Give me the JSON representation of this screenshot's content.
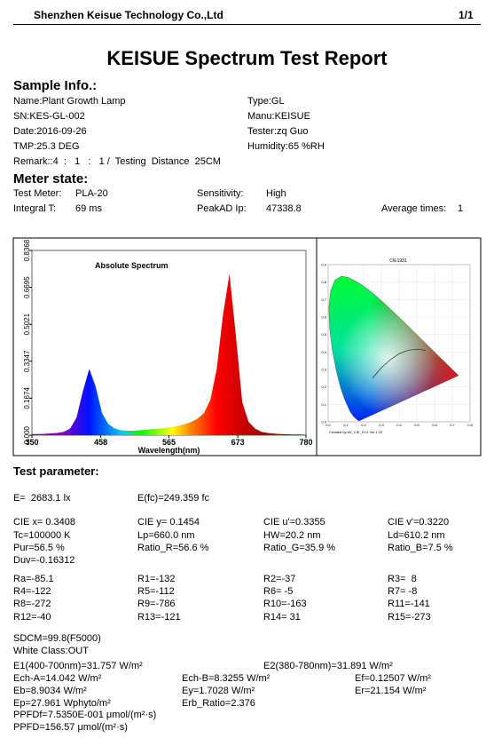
{
  "header": {
    "company": "Shenzhen Keisue Technology Co.,Ltd",
    "page": "1/1"
  },
  "title": "KEISUE Spectrum Test Report",
  "sample_info": {
    "heading": "Sample Info.:",
    "rows": [
      [
        "Name:Plant Growth Lamp",
        "Type:GL"
      ],
      [
        "SN:KES-GL-002",
        "Manu:KEISUE"
      ],
      [
        "Date:2016-09-26",
        "Tester:zq Guo"
      ],
      [
        "TMP:25.3 DEG",
        "Humidity:65 %RH"
      ]
    ],
    "remark": "Remark::4  :   1   :   1 /  Testing  Distance  25CM"
  },
  "meter_state": {
    "heading": "Meter state:",
    "rows": [
      [
        "Test Meter:",
        "PLA-20",
        "Sensitivity:",
        "High"
      ],
      [
        "Integral T:",
        "69 ms",
        "PeakAD Ip:",
        "47338.8",
        "Average times:",
        "1"
      ]
    ]
  },
  "chart_data": {
    "type": "line",
    "title": "Absolute Spectrum",
    "xlabel": "Wavelength(nm)",
    "x": [
      350,
      360,
      370,
      380,
      390,
      400,
      410,
      420,
      430,
      440,
      450,
      460,
      470,
      480,
      490,
      500,
      510,
      520,
      530,
      540,
      550,
      560,
      570,
      580,
      590,
      600,
      610,
      620,
      630,
      640,
      650,
      660,
      670,
      680,
      690,
      700,
      710,
      720,
      730,
      740,
      750,
      760,
      770,
      780
    ],
    "values": [
      0.005,
      0.005,
      0.006,
      0.008,
      0.01,
      0.015,
      0.03,
      0.08,
      0.2,
      0.3,
      0.22,
      0.1,
      0.05,
      0.03,
      0.022,
      0.02,
      0.02,
      0.022,
      0.025,
      0.028,
      0.03,
      0.033,
      0.037,
      0.042,
      0.05,
      0.06,
      0.075,
      0.1,
      0.16,
      0.3,
      0.55,
      0.73,
      0.45,
      0.15,
      0.06,
      0.03,
      0.015,
      0.01,
      0.007,
      0.005,
      0.004,
      0.003,
      0.003,
      0.002
    ],
    "xlim": [
      350,
      780
    ],
    "xticks": [
      350,
      458,
      565,
      673,
      780
    ],
    "ylim": [
      0,
      0.8368
    ],
    "yticks": [
      {
        "value": 0,
        "label": "0.000"
      },
      0.1674,
      0.3347,
      0.5021,
      0.6695,
      0.8368
    ]
  },
  "cie": {
    "title": "CIE1931",
    "credit": "Created by AV_CIE_XYZ Ver.1.22",
    "xlim": [
      0,
      0.8
    ],
    "ylim": [
      0,
      0.9
    ],
    "xticks": [
      {
        "value": 0,
        "label": "0.0"
      },
      0.1,
      0.2,
      0.3,
      0.4,
      0.5,
      0.6,
      0.7,
      0.8
    ],
    "yticks": [
      {
        "value": 0,
        "label": "0.0"
      },
      0.1,
      0.2,
      0.3,
      0.4,
      0.5,
      0.6,
      0.7,
      0.8,
      0.9
    ]
  },
  "test_parameter": {
    "heading": "Test parameter:",
    "rows": [
      [
        "E=  2683.1 lx",
        "E(fc)=249.359 fc"
      ],
      [
        "CIE x= 0.3408",
        "CIE y= 0.1454",
        "CIE u'=0.3355",
        "CIE v'=0.3220"
      ],
      [
        "Tc=100000 K",
        "Lp=660.0 nm",
        "HW=20.2 nm",
        "Ld=610.2 nm"
      ],
      [
        "Pur=56.5 %",
        "Ratio_R=56.6 %",
        "Ratio_G=35.9 %",
        "Ratio_B=7.5 %"
      ],
      [
        "Duv=-0.16312"
      ],
      [
        "Ra=-85.1",
        "R1=-132",
        "R2=-37",
        "R3=  8"
      ],
      [
        "R4=-122",
        "R5=-112",
        "R6= -5",
        "R7= -8"
      ],
      [
        "R8=-272",
        "R9=-786",
        "R10=-163",
        "R11=-141"
      ],
      [
        "R12=-40",
        "R13=-121",
        "R14= 31",
        "R15=-273"
      ],
      [
        "SDCM=99.8(F5000)"
      ],
      [
        "White Class:OUT"
      ],
      [
        "E1(400-700nm)=31.757 W/m²",
        "E2(380-780nm)=31.891 W/m²"
      ],
      [
        "Ech-A=14.042 W/m²",
        "Ech-B=8.3255 W/m²",
        "Ef=0.12507 W/m²"
      ],
      [
        "Eb=8.9034 W/m²",
        "Ey=1.7028 W/m²",
        "Er=21.154 W/m²"
      ],
      [
        "Ep=27.961 Wphyto/m²",
        "Erb_Ratio=2.376"
      ],
      [
        "PPFDf=7.5350E-001 μmol/(m²·s)"
      ],
      [
        "PPFD=156.57 μmol/(m²·s)"
      ]
    ]
  }
}
